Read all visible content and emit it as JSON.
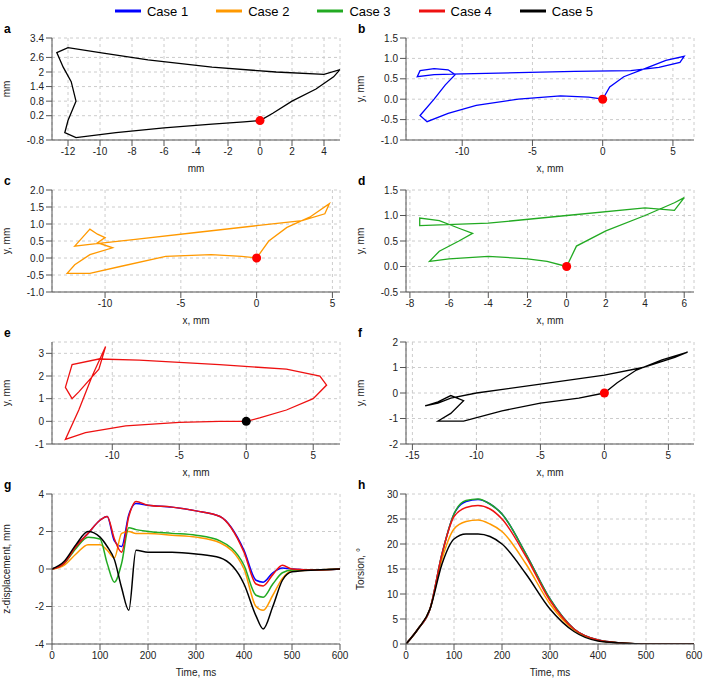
{
  "chart_data": [
    {
      "type": "line",
      "label": "a",
      "x_label": "mm",
      "y_label": "mm",
      "color": "#000000",
      "grid": true,
      "xlim": [
        -13,
        5
      ],
      "xticks": [
        -12,
        -10,
        -8,
        -6,
        -4,
        -2,
        0,
        2,
        4
      ],
      "ylim": [
        -0.8,
        3.4
      ],
      "yticks": [
        -0.8,
        0.2,
        0.8,
        1.4,
        2,
        2.6,
        3.4
      ],
      "x": [
        0,
        0.8,
        2,
        3.5,
        4.6,
        5,
        4,
        1,
        -3,
        -7,
        -10,
        -12,
        -12.7,
        -12.3,
        -11.8,
        -11.5,
        -12,
        -12.2,
        -11.5,
        -9,
        -6,
        -3,
        -1,
        0
      ],
      "y": [
        0,
        0.3,
        0.8,
        1.3,
        1.8,
        2.1,
        1.9,
        2.0,
        2.2,
        2.5,
        2.8,
        3.0,
        2.8,
        2.2,
        1.6,
        0.8,
        0.0,
        -0.5,
        -0.7,
        -0.5,
        -0.3,
        -0.15,
        -0.05,
        0
      ],
      "start": {
        "x": 0,
        "y": 0,
        "color": "#ff0000"
      }
    },
    {
      "type": "line",
      "label": "b",
      "x_label": "x, mm",
      "y_label": "y, mm",
      "color": "#0000ff",
      "grid": true,
      "xlim": [
        -14,
        6.5
      ],
      "xticks": [
        -10,
        -5,
        0,
        5
      ],
      "ylim": [
        -1,
        1.5
      ],
      "yticks": [
        {
          "value": -1,
          "label": "-1.0"
        },
        -0.5,
        {
          "value": 0,
          "label": "0.0"
        },
        0.5,
        {
          "value": 1,
          "label": "1.0"
        },
        1.5
      ],
      "x": [
        0,
        0.5,
        1.5,
        3,
        4.5,
        5.8,
        5.5,
        4,
        2,
        -2,
        -6,
        -10,
        -12,
        -13.2,
        -13,
        -12,
        -11,
        -10.5,
        -11.2,
        -12,
        -13,
        -12.5,
        -11,
        -9,
        -6,
        -3,
        -1,
        0
      ],
      "y": [
        0,
        0.3,
        0.55,
        0.75,
        0.95,
        1.05,
        0.9,
        0.78,
        0.7,
        0.68,
        0.65,
        0.62,
        0.6,
        0.55,
        0.7,
        0.75,
        0.72,
        0.6,
        0.35,
        0,
        -0.4,
        -0.55,
        -0.35,
        -0.15,
        0,
        0.08,
        0.05,
        0
      ],
      "start": {
        "x": 0,
        "y": 0,
        "color": "#ff0000"
      }
    },
    {
      "type": "line",
      "label": "c",
      "x_label": "x, mm",
      "y_label": "y, mm",
      "color": "#ff9900",
      "grid": true,
      "xlim": [
        -13.5,
        5.5
      ],
      "xticks": [
        -10,
        -5,
        0,
        5
      ],
      "ylim": [
        -1,
        2
      ],
      "yticks": [
        {
          "value": -1,
          "label": "-1.0"
        },
        -0.5,
        {
          "value": 0,
          "label": "0.0"
        },
        0.5,
        {
          "value": 1,
          "label": "1.0"
        },
        1.5,
        {
          "value": 2,
          "label": "2.0"
        }
      ],
      "x": [
        0,
        0.8,
        2,
        3.5,
        4.8,
        4.5,
        3,
        0,
        -4,
        -8,
        -11,
        -12,
        -11.5,
        -11,
        -10.5,
        -10,
        -10.5,
        -9.5,
        -11,
        -12,
        -12.5,
        -11,
        -9,
        -6,
        -3,
        -1,
        0
      ],
      "y": [
        0,
        0.5,
        0.9,
        1.2,
        1.6,
        1.3,
        1.1,
        0.95,
        0.75,
        0.55,
        0.4,
        0.35,
        0.6,
        0.85,
        0.7,
        0.6,
        0.45,
        0.3,
        0.1,
        -0.2,
        -0.45,
        -0.45,
        -0.25,
        0.05,
        0.1,
        0.05,
        0
      ],
      "start": {
        "x": 0,
        "y": 0,
        "color": "#ff0000"
      }
    },
    {
      "type": "line",
      "label": "d",
      "x_label": "x, mm",
      "y_label": "y, mm",
      "color": "#22aa22",
      "grid": true,
      "xlim": [
        -8.2,
        6.5
      ],
      "xticks": [
        -8,
        -6,
        -4,
        -2,
        0,
        2,
        4,
        6
      ],
      "ylim": [
        -0.5,
        1.5
      ],
      "yticks": [
        -0.5,
        {
          "value": 0,
          "label": "0.0"
        },
        0.5,
        {
          "value": 1,
          "label": "1.0"
        },
        1.5
      ],
      "x": [
        0,
        0.5,
        2,
        4,
        5.5,
        6,
        5.5,
        4,
        0,
        -4,
        -7.5,
        -7.5,
        -6.5,
        -5.5,
        -4.8,
        -5.5,
        -6.5,
        -7,
        -6,
        -4,
        -2,
        -1,
        0
      ],
      "y": [
        0,
        0.4,
        0.7,
        1.0,
        1.25,
        1.35,
        1.1,
        1.15,
        1.0,
        0.85,
        0.8,
        0.95,
        0.9,
        0.75,
        0.65,
        0.5,
        0.3,
        0.1,
        0.15,
        0.2,
        0.15,
        0.1,
        0
      ],
      "start": {
        "x": 0,
        "y": 0,
        "color": "#ff0000"
      }
    },
    {
      "type": "line",
      "label": "e",
      "x_label": "x, mm",
      "y_label": "y, mm",
      "color": "#ee1111",
      "grid": true,
      "xlim": [
        -14.5,
        7
      ],
      "xticks": [
        -10,
        -5,
        0,
        5
      ],
      "ylim": [
        -1,
        3.5
      ],
      "yticks": [
        -1,
        0,
        1,
        2,
        3
      ],
      "x": [
        0,
        1,
        3,
        5,
        6,
        5.5,
        3,
        -2,
        -8,
        -11,
        -13,
        -13.5,
        -13,
        -12.5,
        -11,
        -10.5,
        -11.5,
        -12.5,
        -13.5,
        -12,
        -9,
        -5,
        -2,
        0
      ],
      "y": [
        0,
        0.15,
        0.5,
        1.0,
        1.6,
        2.0,
        2.3,
        2.5,
        2.7,
        2.75,
        2.5,
        1.5,
        1.0,
        1.3,
        2.3,
        3.3,
        2.0,
        0.5,
        -0.8,
        -0.5,
        -0.2,
        -0.05,
        0,
        0
      ],
      "start": {
        "x": 0,
        "y": 0,
        "color": "#000000"
      }
    },
    {
      "type": "line",
      "label": "f",
      "x_label": "x, mm",
      "y_label": "y, mm",
      "color": "#000000",
      "grid": true,
      "xlim": [
        -15.5,
        7
      ],
      "xticks": [
        -15,
        -10,
        -5,
        0,
        5
      ],
      "ylim": [
        -2,
        2
      ],
      "yticks": [
        -2,
        -1,
        0,
        1,
        2
      ],
      "x": [
        0,
        1,
        2.5,
        4.5,
        6.5,
        5.5,
        3,
        0,
        -5,
        -10,
        -12,
        -13,
        -14,
        -13,
        -12,
        -11,
        -12,
        -13,
        -11,
        -8,
        -5,
        -2,
        0
      ],
      "y": [
        0,
        0.4,
        0.9,
        1.3,
        1.6,
        1.4,
        1.0,
        0.7,
        0.35,
        0,
        -0.2,
        -0.4,
        -0.5,
        -0.35,
        -0.1,
        -0.3,
        -0.8,
        -1.1,
        -1.1,
        -0.7,
        -0.4,
        -0.2,
        0
      ],
      "start": {
        "x": 0,
        "y": 0,
        "color": "#ff0000"
      }
    },
    {
      "type": "line",
      "label": "g",
      "x_label": "Time, ms",
      "y_label": "z-displacement, mm",
      "grid": true,
      "legend": "top",
      "xlim": [
        0,
        600
      ],
      "xticks": [
        0,
        100,
        200,
        300,
        400,
        500,
        600
      ],
      "ylim": [
        -4,
        4
      ],
      "yticks": [
        -4,
        -2,
        0,
        2,
        4
      ],
      "x": [
        0,
        25,
        50,
        75,
        100,
        115,
        130,
        145,
        160,
        175,
        200,
        250,
        300,
        350,
        400,
        425,
        440,
        460,
        480,
        500,
        550,
        600
      ],
      "series": [
        {
          "name": "Case 1",
          "color": "#0000ff",
          "values": [
            0,
            0.3,
            1.2,
            1.9,
            2.6,
            2.8,
            1.5,
            1.2,
            2.9,
            3.5,
            3.4,
            3.3,
            3.1,
            2.8,
            1.0,
            -0.6,
            -0.7,
            -0.2,
            0.05,
            0,
            -0.05,
            0
          ]
        },
        {
          "name": "Case 2",
          "color": "#ff9900",
          "values": [
            0,
            0.2,
            0.8,
            1.3,
            1.3,
            1.0,
            0.6,
            1.9,
            2.0,
            1.9,
            1.9,
            1.8,
            1.7,
            1.4,
            0.0,
            -2.0,
            -2.2,
            -1.4,
            -0.5,
            -0.1,
            -0.05,
            0
          ]
        },
        {
          "name": "Case 3",
          "color": "#22aa22",
          "values": [
            0,
            0.3,
            1.1,
            1.7,
            1.6,
            0.3,
            -0.7,
            0.3,
            2.2,
            2.1,
            2.0,
            1.9,
            1.8,
            1.5,
            0.2,
            -1.4,
            -1.5,
            -0.8,
            -0.2,
            -0.05,
            -0.05,
            0
          ]
        },
        {
          "name": "Case 4",
          "color": "#ee1111",
          "values": [
            0,
            0.3,
            1.2,
            1.9,
            2.6,
            2.8,
            1.6,
            0.9,
            2.8,
            3.6,
            3.4,
            3.3,
            3.1,
            2.8,
            0.9,
            -0.8,
            -0.9,
            -0.3,
            0.2,
            0,
            -0.05,
            0
          ]
        },
        {
          "name": "Case 5",
          "color": "#000000",
          "values": [
            0,
            0.4,
            1.3,
            2.0,
            1.7,
            1.2,
            0.5,
            -1.0,
            -2.2,
            1.0,
            0.9,
            0.9,
            0.8,
            0.6,
            -0.8,
            -2.5,
            -3.2,
            -2.0,
            -0.6,
            -0.15,
            -0.05,
            0
          ]
        }
      ]
    },
    {
      "type": "line",
      "label": "h",
      "x_label": "Time, ms",
      "y_label": "Torsion, °",
      "grid": true,
      "xlim": [
        0,
        600
      ],
      "xticks": [
        0,
        100,
        200,
        300,
        400,
        500,
        600
      ],
      "ylim": [
        0,
        30
      ],
      "yticks": [
        0,
        5,
        10,
        15,
        20,
        25,
        30
      ],
      "x": [
        0,
        25,
        50,
        75,
        100,
        125,
        150,
        175,
        200,
        250,
        300,
        350,
        400,
        450,
        500,
        600
      ],
      "series": [
        {
          "name": "Case 1",
          "color": "#0000ff",
          "values": [
            0,
            3,
            7,
            18,
            26,
            28.5,
            28.9,
            28,
            26,
            18,
            9,
            3,
            0.8,
            0.2,
            0,
            0
          ]
        },
        {
          "name": "Case 2",
          "color": "#ff9900",
          "values": [
            0,
            3,
            7,
            17,
            23,
            24.5,
            24.8,
            24,
            22.5,
            16,
            8,
            2.8,
            0.7,
            0.2,
            0,
            0
          ]
        },
        {
          "name": "Case 3",
          "color": "#22aa22",
          "values": [
            0,
            3,
            7,
            18,
            26,
            28.7,
            29,
            28,
            26,
            18,
            9,
            3,
            0.8,
            0.2,
            0,
            0
          ]
        },
        {
          "name": "Case 4",
          "color": "#ee1111",
          "values": [
            0,
            3,
            7,
            18,
            25.5,
            27.3,
            27.7,
            27,
            25,
            17.5,
            8.7,
            3,
            0.8,
            0.2,
            0,
            0
          ]
        },
        {
          "name": "Case 5",
          "color": "#000000",
          "values": [
            0,
            3,
            7,
            16,
            21,
            22,
            22,
            21.5,
            20,
            14,
            7,
            2.5,
            0.6,
            0.2,
            0,
            0
          ]
        }
      ]
    }
  ]
}
